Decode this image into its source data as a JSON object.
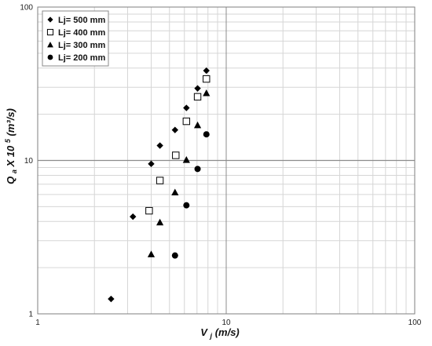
{
  "chart_data": {
    "type": "scatter",
    "x_scale": "log",
    "y_scale": "log",
    "xlim": [
      1,
      100
    ],
    "ylim": [
      1,
      100
    ],
    "grid": true,
    "legend_position": "top-left",
    "x_ticks": [
      "1",
      "10",
      "100"
    ],
    "y_ticks": [
      "1",
      "10",
      "100"
    ],
    "xlabel": {
      "main": "V",
      "sub": "j",
      "rest": " (m/s)"
    },
    "ylabel": {
      "main": "Q",
      "sub": "a",
      "mid": " X 10",
      "sup": "5",
      "rest": " (m³/s)"
    },
    "series": [
      {
        "name": "Lj= 500 mm",
        "marker": "diamond",
        "color": "#000000",
        "points": [
          {
            "x": 2.45,
            "y": 1.25
          },
          {
            "x": 3.2,
            "y": 4.3
          },
          {
            "x": 4.0,
            "y": 9.5
          },
          {
            "x": 4.45,
            "y": 12.5
          },
          {
            "x": 5.35,
            "y": 15.8
          },
          {
            "x": 6.15,
            "y": 22.0
          },
          {
            "x": 7.05,
            "y": 29.5
          },
          {
            "x": 7.85,
            "y": 38.5
          }
        ]
      },
      {
        "name": "Lj= 400 mm",
        "marker": "square-open",
        "color": "#000000",
        "points": [
          {
            "x": 3.9,
            "y": 4.7
          },
          {
            "x": 4.45,
            "y": 7.4
          },
          {
            "x": 5.4,
            "y": 10.8
          },
          {
            "x": 6.15,
            "y": 18.0
          },
          {
            "x": 7.05,
            "y": 26.0
          },
          {
            "x": 7.85,
            "y": 34.0
          }
        ]
      },
      {
        "name": "Lj= 300 mm",
        "marker": "triangle",
        "color": "#000000",
        "points": [
          {
            "x": 4.0,
            "y": 2.45
          },
          {
            "x": 4.45,
            "y": 3.95
          },
          {
            "x": 5.35,
            "y": 6.2
          },
          {
            "x": 6.15,
            "y": 10.1
          },
          {
            "x": 7.05,
            "y": 17.0
          },
          {
            "x": 7.85,
            "y": 27.5
          }
        ]
      },
      {
        "name": "Lj= 200 mm",
        "marker": "circle",
        "color": "#000000",
        "points": [
          {
            "x": 5.35,
            "y": 2.4
          },
          {
            "x": 6.15,
            "y": 5.1
          },
          {
            "x": 7.05,
            "y": 8.8
          },
          {
            "x": 7.85,
            "y": 14.8
          }
        ]
      }
    ]
  }
}
